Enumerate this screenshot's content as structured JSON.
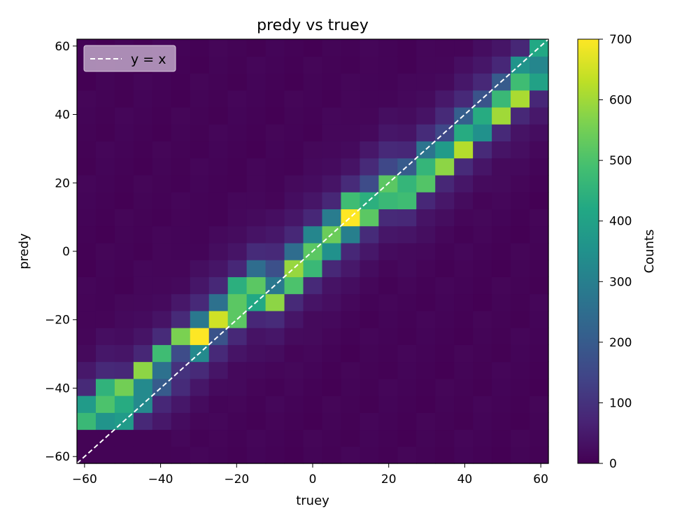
{
  "chart_data": {
    "type": "heatmap",
    "title": "predy vs truey",
    "xlabel": "truey",
    "ylabel": "predy",
    "xlim": [
      -62,
      62
    ],
    "ylim": [
      -62,
      62
    ],
    "x_ticks": [
      -60,
      -40,
      -20,
      0,
      20,
      40,
      60
    ],
    "y_ticks": [
      -60,
      -40,
      -20,
      0,
      20,
      40,
      60
    ],
    "x_tick_labels": [
      "−60",
      "−40",
      "−20",
      "0",
      "20",
      "40",
      "60"
    ],
    "y_tick_labels": [
      "−60",
      "−40",
      "−20",
      "0",
      "20",
      "40",
      "60"
    ],
    "bins_x": 25,
    "bins_y": 25,
    "colormap": "viridis",
    "colorbar": {
      "label": "Counts",
      "range": [
        0,
        700
      ],
      "ticks": [
        0,
        100,
        200,
        300,
        400,
        500,
        600,
        700
      ],
      "tick_labels": [
        "0",
        "100",
        "200",
        "300",
        "400",
        "500",
        "600",
        "700"
      ]
    },
    "diagonal_band": {
      "description_counts_by_x_bin": [
        {
          "x_bin": 0,
          "peak_counts": [
            340,
            470,
            380
          ]
        },
        {
          "x_bin": 1,
          "peak_counts": [
            360,
            500,
            450
          ]
        },
        {
          "x_bin": 2,
          "peak_counts": [
            380,
            430,
            550
          ]
        },
        {
          "x_bin": 3,
          "peak_counts": [
            330,
            330,
            580
          ]
        },
        {
          "x_bin": 4,
          "peak_counts": [
            200,
            260,
            480
          ]
        },
        {
          "x_bin": 5,
          "peak_counts": [
            100,
            160,
            560
          ]
        },
        {
          "x_bin": 6,
          "peak_counts": [
            330,
            700,
            280
          ]
        },
        {
          "x_bin": 7,
          "peak_counts": [
            180,
            650,
            260
          ]
        },
        {
          "x_bin": 8,
          "peak_counts": [
            520,
            520,
            440
          ]
        },
        {
          "x_bin": 9,
          "peak_counts": [
            420,
            520,
            250
          ]
        },
        {
          "x_bin": 10,
          "peak_counts": [
            580,
            280,
            170
          ]
        },
        {
          "x_bin": 11,
          "peak_counts": [
            500,
            590,
            250
          ]
        },
        {
          "x_bin": 12,
          "peak_counts": [
            470,
            520,
            320
          ]
        },
        {
          "x_bin": 13,
          "peak_counts": [
            350,
            540,
            290
          ]
        },
        {
          "x_bin": 14,
          "peak_counts": [
            300,
            700,
            480
          ]
        },
        {
          "x_bin": 15,
          "peak_counts": [
            520,
            440,
            160
          ]
        },
        {
          "x_bin": 16,
          "peak_counts": [
            470,
            520,
            150
          ]
        },
        {
          "x_bin": 17,
          "peak_counts": [
            480,
            460,
            200
          ]
        },
        {
          "x_bin": 18,
          "peak_counts": [
            510,
            460,
            270
          ]
        },
        {
          "x_bin": 19,
          "peak_counts": [
            580,
            380,
            150
          ]
        },
        {
          "x_bin": 20,
          "peak_counts": [
            620,
            430,
            210
          ]
        },
        {
          "x_bin": 21,
          "peak_counts": [
            350,
            430,
            180
          ]
        },
        {
          "x_bin": 22,
          "peak_counts": [
            600,
            470,
            200
          ]
        },
        {
          "x_bin": 23,
          "peak_counts": [
            610,
            480,
            360
          ]
        },
        {
          "x_bin": 24,
          "peak_counts": [
            400,
            320,
            420
          ]
        }
      ]
    },
    "reference_line": {
      "label": "y = x",
      "style": "dashed",
      "color": "#ffffff"
    },
    "legend": {
      "position": "top-left",
      "entries": [
        "y = x"
      ]
    }
  }
}
